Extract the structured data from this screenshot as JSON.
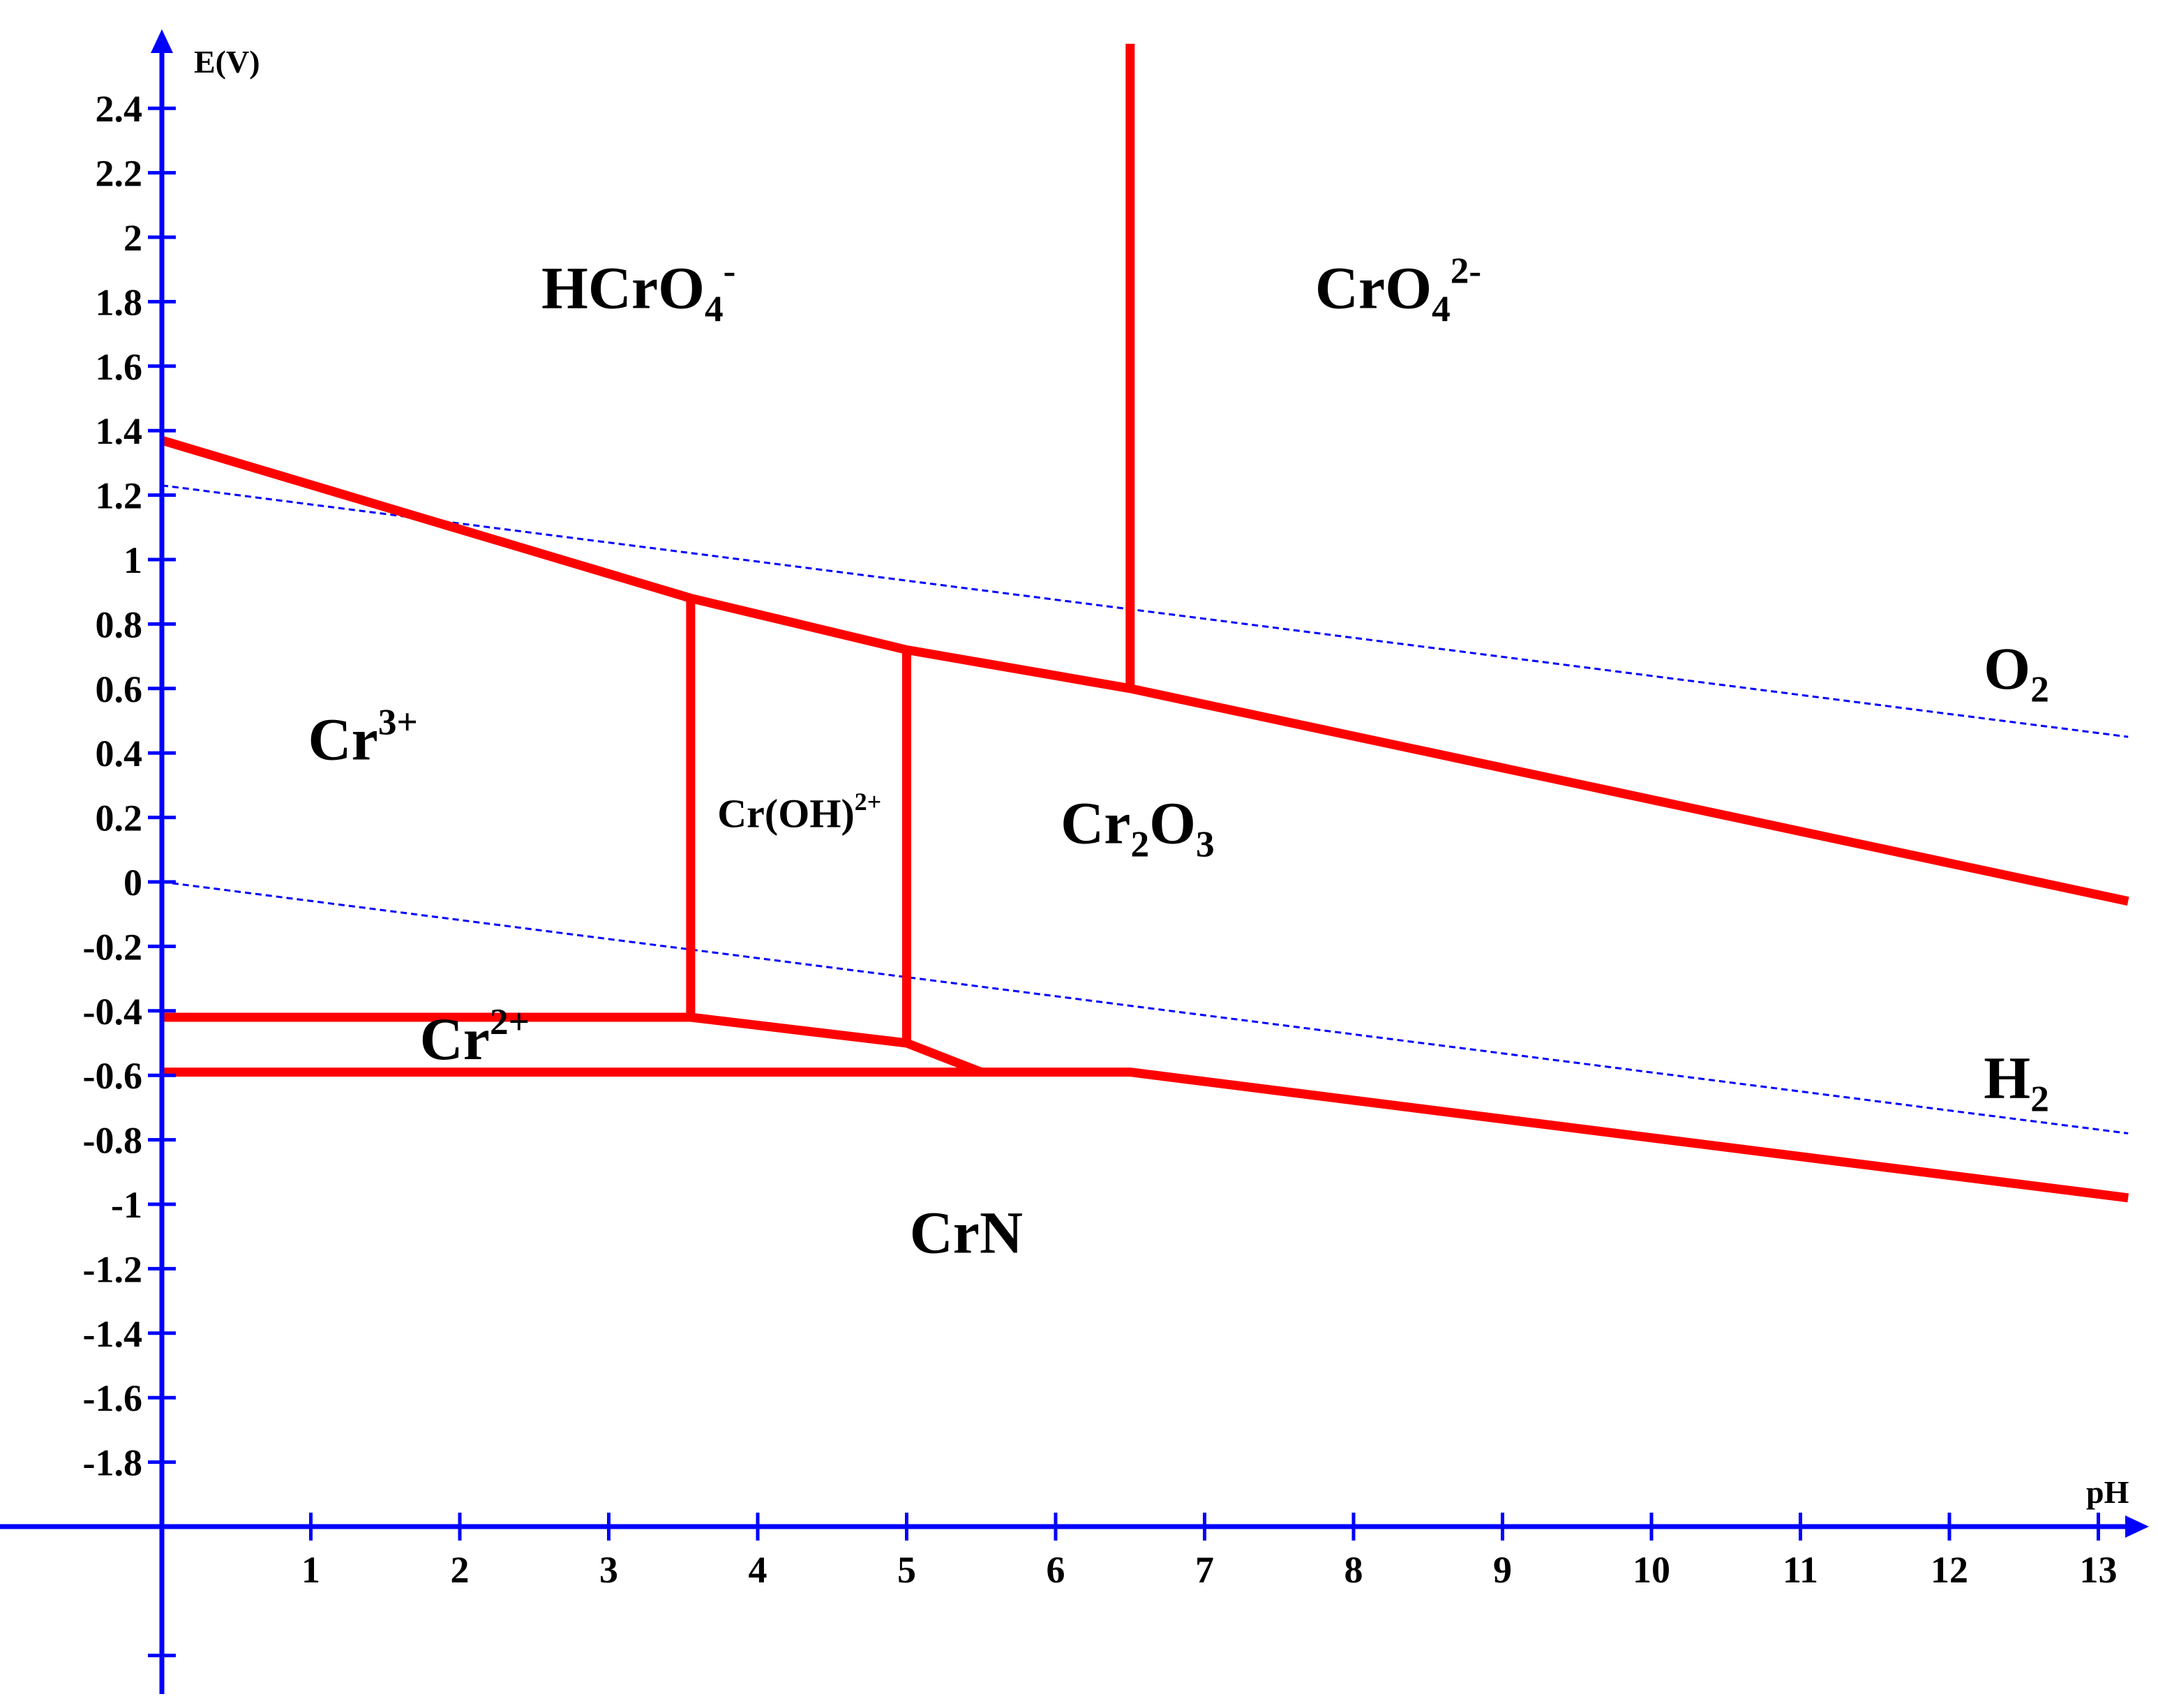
{
  "chart_data": {
    "type": "line",
    "title": "",
    "xlabel": "pH",
    "ylabel": "E(V)",
    "xlim": [
      0,
      13
    ],
    "ylim": [
      -1.8,
      2.4
    ],
    "x_ticks": [
      "1",
      "2",
      "3",
      "4",
      "5",
      "6",
      "7",
      "8",
      "9",
      "10",
      "11",
      "12",
      "13"
    ],
    "y_ticks": [
      "2.4",
      "2.2",
      "2",
      "1.8",
      "1.6",
      "1.4",
      "1.2",
      "1",
      "0.8",
      "0.6",
      "0.4",
      "0.2",
      "0",
      "-0.2",
      "-0.4",
      "-0.6",
      "-0.8",
      "-1",
      "-1.2",
      "-1.4",
      "-1.6",
      "-1.8"
    ],
    "grid": false,
    "legend": "none",
    "colors": {
      "boundary": "#ff0000",
      "water": "#0000ff",
      "axis": "#0000ff"
    },
    "boundaries": [
      {
        "points": [
          [
            0,
            1.37
          ],
          [
            3.55,
            0.88
          ],
          [
            5.0,
            0.72
          ],
          [
            6.5,
            0.6
          ],
          [
            13.2,
            -0.06
          ]
        ]
      },
      {
        "points": [
          [
            6.5,
            0.6
          ],
          [
            6.5,
            2.6
          ]
        ]
      },
      {
        "points": [
          [
            3.55,
            0.88
          ],
          [
            3.55,
            -0.42
          ]
        ]
      },
      {
        "points": [
          [
            5.0,
            0.72
          ],
          [
            5.0,
            -0.5
          ]
        ]
      },
      {
        "points": [
          [
            0,
            -0.42
          ],
          [
            3.55,
            -0.42
          ],
          [
            5.0,
            -0.5
          ],
          [
            5.5,
            -0.59
          ]
        ]
      },
      {
        "points": [
          [
            0,
            -0.59
          ],
          [
            6.5,
            -0.59
          ],
          [
            13.2,
            -0.98
          ]
        ]
      }
    ],
    "water_lines": [
      {
        "points": [
          [
            0,
            1.23
          ],
          [
            13.2,
            0.45
          ]
        ]
      },
      {
        "points": [
          [
            0,
            0.0
          ],
          [
            13.2,
            -0.78
          ]
        ]
      }
    ],
    "regions": [
      {
        "base": "HCrO",
        "sub": "4",
        "sup": "-",
        "x": 3.2,
        "y": 1.78
      },
      {
        "base": "CrO",
        "sub": "4",
        "sup": "2-",
        "x": 8.3,
        "y": 1.78
      },
      {
        "base": "Cr",
        "sub": "",
        "sup": "3+",
        "x": 1.35,
        "y": 0.38
      },
      {
        "base": "Cr(OH)",
        "sub": "",
        "sup": "2+",
        "x": 4.28,
        "y": 0.17
      },
      {
        "base": "Cr",
        "sub": "2",
        "sup": "",
        "after": "O",
        "sub2": "3",
        "x": 6.55,
        "y": 0.12
      },
      {
        "base": "Cr",
        "sub": "",
        "sup": "2+",
        "x": 2.1,
        "y": -0.55
      },
      {
        "base": "CrN",
        "sub": "",
        "sup": "",
        "x": 5.4,
        "y": -1.15
      },
      {
        "base": "O",
        "sub": "2",
        "sup": "",
        "x": 12.45,
        "y": 0.6
      },
      {
        "base": "H",
        "sub": "2",
        "sup": "",
        "x": 12.45,
        "y": -0.67
      }
    ]
  }
}
